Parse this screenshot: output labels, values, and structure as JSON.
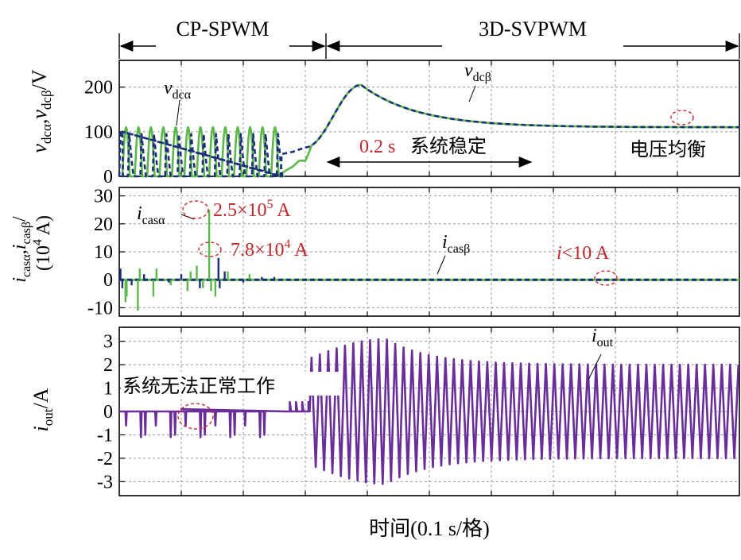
{
  "colors": {
    "alpha": "#5cb84a",
    "beta": "#1c2f7a",
    "out": "#6a2e9a",
    "annotation": "#c0282c"
  },
  "header": {
    "left_label": "CP-SPWM",
    "right_label": "3D-SVPWM"
  },
  "xaxis": {
    "label": "时间(0.1 s/格)"
  },
  "chart_data": [
    {
      "type": "line",
      "ylabel": "v_dcα,v_dcβ/V",
      "ylim": [
        0,
        260
      ],
      "yticks": [
        0,
        100,
        200
      ],
      "x_unit": "div (0.1 s/div)",
      "x_range": [
        0,
        10
      ],
      "series": [
        {
          "name": "v_dcα",
          "x": [
            0,
            1,
            1.05,
            1.5,
            2,
            2.5,
            3,
            3.5,
            4,
            5,
            6,
            7,
            8,
            10
          ],
          "y": [
            0,
            120,
            0,
            0,
            30,
            60,
            100,
            200,
            190,
            140,
            112,
            108,
            108,
            108
          ]
        },
        {
          "name": "v_dcβ",
          "x": [
            0,
            1,
            1.05,
            1.5,
            2,
            2.5,
            3,
            3.5,
            4,
            5,
            6,
            7,
            8,
            10
          ],
          "y": [
            0,
            100,
            0,
            0,
            40,
            80,
            120,
            200,
            190,
            140,
            112,
            108,
            108,
            108
          ]
        }
      ],
      "annotations": [
        "v_dcα",
        "v_dcβ",
        "0.2 s系统稳定",
        "电压均衡"
      ]
    },
    {
      "type": "line",
      "ylabel": "i_casα,i_casβ/(10⁴ A)",
      "ylim": [
        -13,
        33
      ],
      "yticks": [
        -10,
        0,
        10,
        20,
        30
      ],
      "x_unit": "div (0.1 s/div)",
      "x_range": [
        0,
        10
      ],
      "series": [
        {
          "name": "i_casα",
          "peak": 25
        },
        {
          "name": "i_casβ",
          "peak": 7.8
        }
      ],
      "annotations": [
        "i_casα",
        "2.5×10⁵ A",
        "7.8×10⁴ A",
        "i_casβ",
        "i<10 A"
      ]
    },
    {
      "type": "line",
      "ylabel": "i_out/A",
      "ylim": [
        -3.6,
        3.6
      ],
      "yticks": [
        -3,
        -2,
        -1,
        0,
        1,
        2,
        3
      ],
      "x_unit": "div (0.1 s/div)",
      "x_range": [
        0,
        10
      ],
      "series": [
        {
          "name": "i_out",
          "peak": 3.1,
          "steady_amplitude": 2.0
        }
      ],
      "annotations": [
        "i_out",
        "系统无法正常工作"
      ]
    }
  ],
  "labels": {
    "p1_ylabel_v1": "v",
    "p1_ylabel_sub1": "dcα",
    "p1_ylabel_comma": ",",
    "p1_ylabel_v2": "v",
    "p1_ylabel_sub2": "dcβ",
    "p1_ylabel_unit": "/V",
    "p1_alpha_i": "v",
    "p1_alpha_sub": "dcα",
    "p1_beta_i": "v",
    "p1_beta_sub": "dcβ",
    "p1_stable": "0.2 s",
    "p1_stable_cn": "系统稳定",
    "p1_balance": "电压均衡",
    "p2_ylabel_i1": "i",
    "p2_ylabel_sub1": "casα",
    "p2_ylabel_comma": ",",
    "p2_ylabel_i2": "i",
    "p2_ylabel_sub2": "casβ",
    "p2_ylabel_slash": "/",
    "p2_ylabel_unit_a": "(10",
    "p2_ylabel_unit_exp": "4",
    "p2_ylabel_unit_b": " A)",
    "p2_alpha_i": "i",
    "p2_alpha_sub": "casα",
    "p2_peak1_a": "2.5×10",
    "p2_peak1_exp": "5",
    "p2_peak1_b": " A",
    "p2_peak2_a": "7.8×10",
    "p2_peak2_exp": "4",
    "p2_peak2_b": " A",
    "p2_beta_i": "i",
    "p2_beta_sub": "casβ",
    "p2_small_i": "i",
    "p2_small_rest": "<10 A",
    "p3_ylabel_i": "i",
    "p3_ylabel_sub": "out",
    "p3_ylabel_unit": "/A",
    "p3_out_i": "i",
    "p3_out_sub": "out",
    "p3_fail": "系统无法正常工作"
  }
}
